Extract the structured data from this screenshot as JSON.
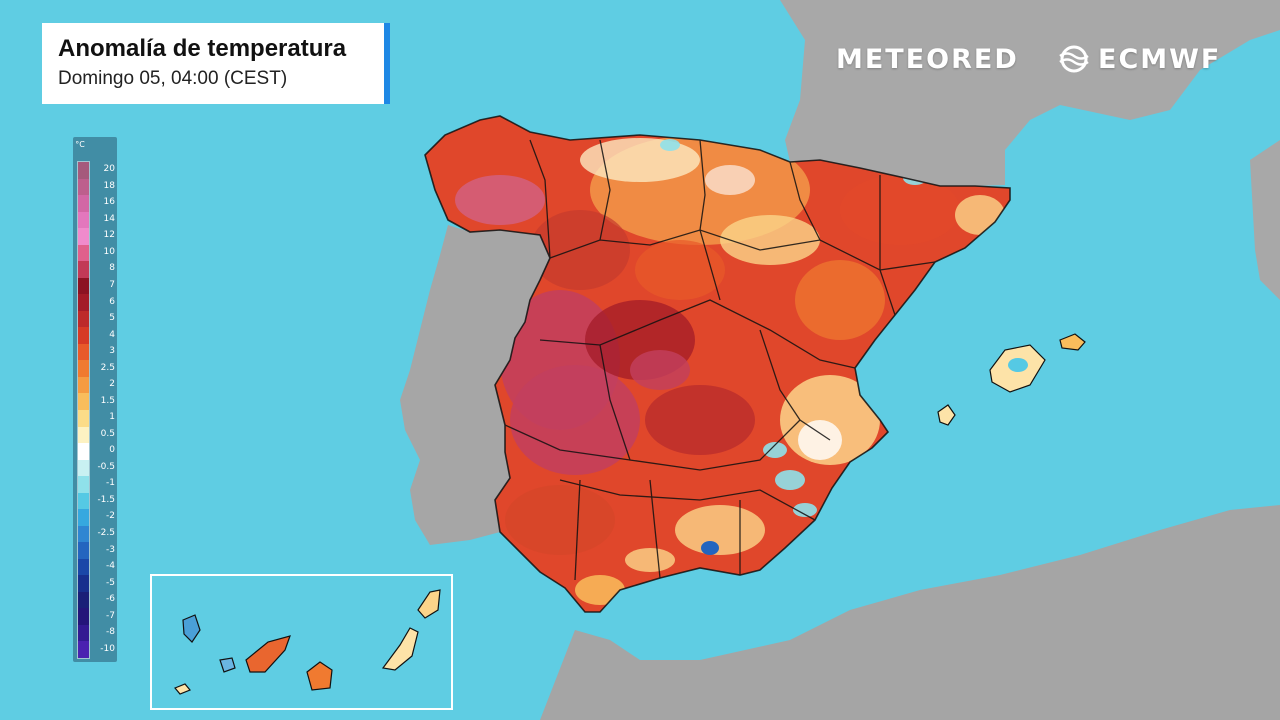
{
  "header": {
    "title": "Anomalía de temperatura",
    "subtitle": "Domingo 05, 04:00 (CEST)"
  },
  "brands": {
    "meteored": "METEORED",
    "ecmwf": "ECMWF"
  },
  "legend": {
    "unit": "°C",
    "levels": [
      {
        "label": "20",
        "color": "#a55a7c"
      },
      {
        "label": "18",
        "color": "#bd5f8d"
      },
      {
        "label": "16",
        "color": "#d267a5"
      },
      {
        "label": "14",
        "color": "#e377bd"
      },
      {
        "label": "12",
        "color": "#f08bcc"
      },
      {
        "label": "10",
        "color": "#e0608c"
      },
      {
        "label": "8",
        "color": "#c23a57"
      },
      {
        "label": "7",
        "color": "#8c1323"
      },
      {
        "label": "6",
        "color": "#a31b28"
      },
      {
        "label": "5",
        "color": "#bd2a2a"
      },
      {
        "label": "4",
        "color": "#d63a26"
      },
      {
        "label": "3",
        "color": "#e85a2a"
      },
      {
        "label": "2.5",
        "color": "#f07a30"
      },
      {
        "label": "2",
        "color": "#f59b42"
      },
      {
        "label": "1.5",
        "color": "#f9bd5c"
      },
      {
        "label": "1",
        "color": "#fbdc88"
      },
      {
        "label": "0.5",
        "color": "#fdf2c2"
      },
      {
        "label": "0",
        "color": "#ffffff"
      },
      {
        "label": "-0.5",
        "color": "#c9f1f2"
      },
      {
        "label": "-1",
        "color": "#8fe1ea"
      },
      {
        "label": "-1.5",
        "color": "#55c9e4"
      },
      {
        "label": "-2",
        "color": "#36a8df"
      },
      {
        "label": "-2.5",
        "color": "#2f86d2"
      },
      {
        "label": "-3",
        "color": "#2465bf"
      },
      {
        "label": "-4",
        "color": "#1a47a8"
      },
      {
        "label": "-5",
        "color": "#172f8e"
      },
      {
        "label": "-6",
        "color": "#1a1f78"
      },
      {
        "label": "-7",
        "color": "#24157a"
      },
      {
        "label": "-8",
        "color": "#331a92"
      },
      {
        "label": "-10",
        "color": "#4a22b0"
      }
    ]
  },
  "map_colors": {
    "sea": "#5fcde3",
    "land": "#a9a9a9",
    "border": "#111111",
    "inset_frame": "#ffffff"
  }
}
